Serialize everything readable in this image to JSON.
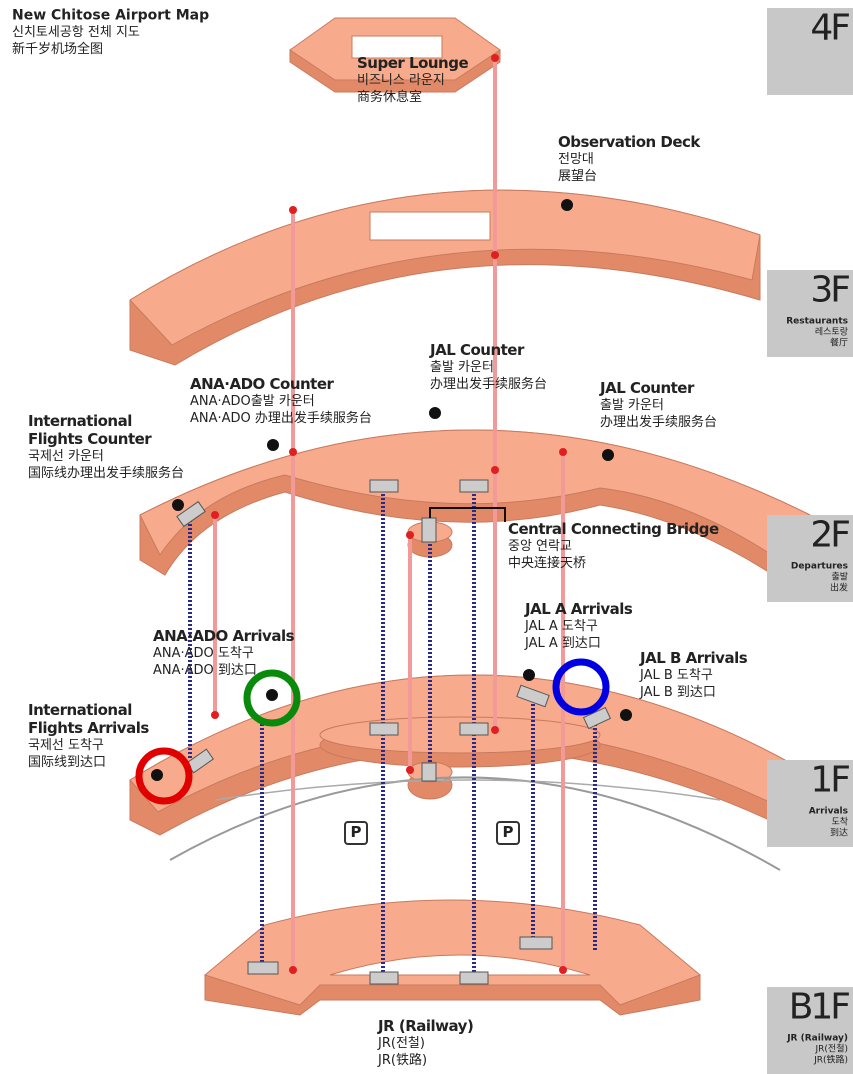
{
  "title": [
    "New Chitose Airport Map",
    "신치토세공항 전체 지도",
    "新千岁机场全图"
  ],
  "floors": [
    {
      "level": "4F"
    },
    {
      "level": "3F",
      "lines": [
        "Restaurants",
        "레스토랑",
        "餐厅"
      ]
    },
    {
      "level": "2F",
      "lines": [
        "Departures",
        "출발",
        "出发"
      ]
    },
    {
      "level": "1F",
      "lines": [
        "Arrivals",
        "도착",
        "到达"
      ]
    },
    {
      "level": "B1F",
      "lines": [
        "JR (Railway)",
        "JR(전철)",
        "JR(铁路)"
      ]
    }
  ],
  "locations": [
    {
      "name": [
        "Super Lounge"
      ],
      "lines": [
        "비즈니스 라운지",
        "商务休息室"
      ]
    },
    {
      "name": [
        "Observation Deck"
      ],
      "lines": [
        "전망대",
        "展望台"
      ]
    },
    {
      "name": [
        "JAL Counter"
      ],
      "lines": [
        "출발 카운터",
        "办理出发手续服务台"
      ]
    },
    {
      "name": [
        "ANA·ADO Counter"
      ],
      "lines": [
        "ANA·ADO출발 카운터",
        "ANA·ADO 办理出发手续服务台"
      ]
    },
    {
      "name": [
        "JAL Counter"
      ],
      "lines": [
        "출발 카운터",
        "办理出发手续服务台"
      ]
    },
    {
      "name": [
        "International",
        "Flights Counter"
      ],
      "lines": [
        "국제선 카운터",
        "国际线办理出发手续服务台"
      ]
    },
    {
      "name": [
        "Central Connecting Bridge"
      ],
      "lines": [
        "중앙 연락교",
        "中央连接天桥"
      ]
    },
    {
      "name": [
        "JAL A Arrivals"
      ],
      "lines": [
        "JAL A 도착구",
        "JAL A 到达口"
      ]
    },
    {
      "name": [
        "ANA·ADO Arrivals"
      ],
      "lines": [
        "ANA·ADO 도착구",
        "ANA·ADO 到达口"
      ]
    },
    {
      "name": [
        "JAL B Arrivals"
      ],
      "lines": [
        "JAL B 도착구",
        "JAL B 到达口"
      ]
    },
    {
      "name": [
        "International",
        "Flights Arrivals"
      ],
      "lines": [
        "국제선 도착구",
        "国际线到达口"
      ]
    },
    {
      "name": [
        "JR (Railway)"
      ],
      "lines": [
        "JR(전철)",
        "JR(铁路)"
      ]
    }
  ],
  "parking": [
    "P",
    "P"
  ]
}
